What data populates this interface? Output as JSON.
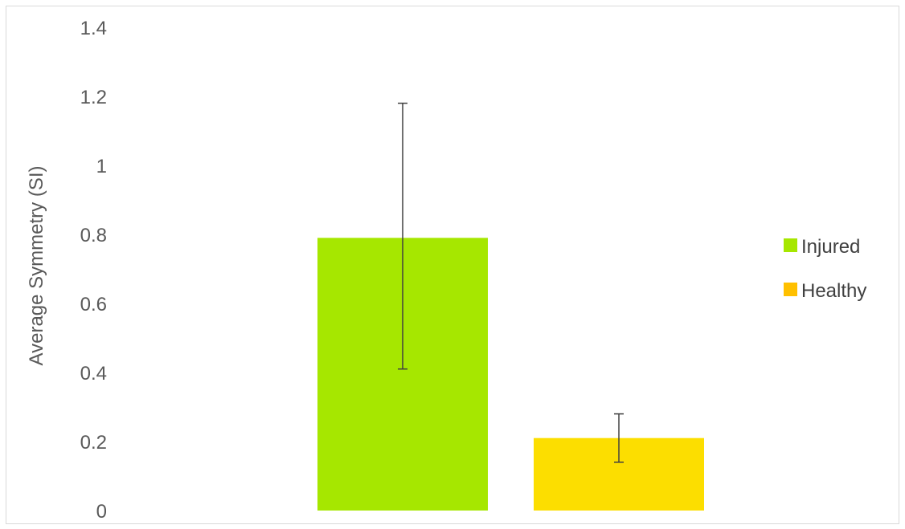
{
  "chart_data": {
    "type": "bar",
    "title": "",
    "xlabel": "",
    "ylabel": "Average Symmetry (SI)",
    "ylim": [
      0,
      1.4
    ],
    "yticks": [
      0,
      0.2,
      0.4,
      0.6,
      0.8,
      1,
      1.2,
      1.4
    ],
    "ytick_labels": [
      "0",
      "0.2",
      "0.4",
      "0.6",
      "0.8",
      "1",
      "1.2",
      "1.4"
    ],
    "grid": false,
    "legend_position": "right",
    "series": [
      {
        "name": "Injured",
        "value": 0.79,
        "error_low": 0.41,
        "error_high": 1.18,
        "color": "#a6e700"
      },
      {
        "name": "Healthy",
        "value": 0.21,
        "error_low": 0.14,
        "error_high": 0.28,
        "color": "#fcde00"
      }
    ],
    "legend": [
      {
        "label": "Injured",
        "color": "#a6e700"
      },
      {
        "label": "Healthy",
        "color": "#ffc000"
      }
    ]
  }
}
